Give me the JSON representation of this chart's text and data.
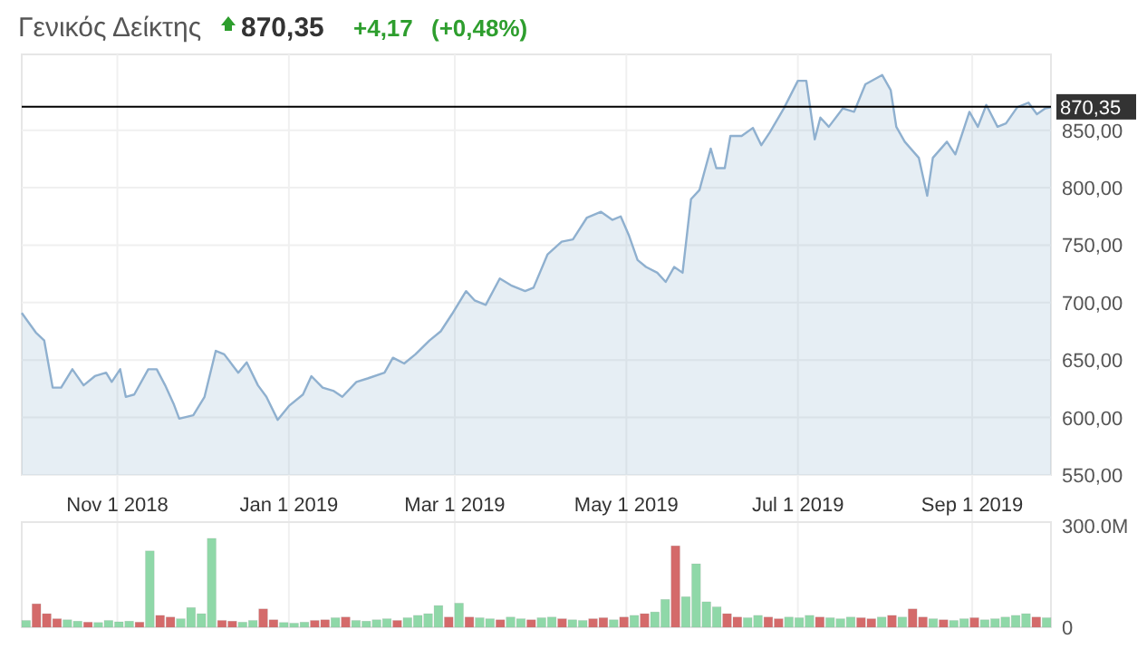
{
  "chart_data": [
    {
      "type": "area",
      "title": "Γενικός Δείκτης",
      "annotations": [
        "870,35",
        "+4,17",
        "(+0,48%)"
      ],
      "x": [
        "2018-09-28",
        "2018-10-03",
        "2018-10-06",
        "2018-10-09",
        "2018-10-12",
        "2018-10-16",
        "2018-10-20",
        "2018-10-24",
        "2018-10-28",
        "2018-10-30",
        "2018-11-02",
        "2018-11-04",
        "2018-11-07",
        "2018-11-12",
        "2018-11-15",
        "2018-11-18",
        "2018-11-21",
        "2018-11-23",
        "2018-11-28",
        "2018-12-02",
        "2018-12-06",
        "2018-12-09",
        "2018-12-14",
        "2018-12-17",
        "2018-12-21",
        "2018-12-24",
        "2018-12-28",
        "2019-01-01",
        "2019-01-06",
        "2019-01-09",
        "2019-01-13",
        "2019-01-17",
        "2019-01-20",
        "2019-01-25",
        "2019-01-29",
        "2019-02-04",
        "2019-02-07",
        "2019-02-11",
        "2019-02-15",
        "2019-02-20",
        "2019-02-24",
        "2019-02-28",
        "2019-03-05",
        "2019-03-08",
        "2019-03-12",
        "2019-03-17",
        "2019-03-21",
        "2019-03-26",
        "2019-03-29",
        "2019-04-03",
        "2019-04-08",
        "2019-04-12",
        "2019-04-17",
        "2019-04-22",
        "2019-04-26",
        "2019-04-29",
        "2019-05-02",
        "2019-05-05",
        "2019-05-08",
        "2019-05-12",
        "2019-05-15",
        "2019-05-18",
        "2019-05-21",
        "2019-05-24",
        "2019-05-27",
        "2019-05-31",
        "2019-06-02",
        "2019-06-05",
        "2019-06-07",
        "2019-06-11",
        "2019-06-15",
        "2019-06-18",
        "2019-06-21",
        "2019-06-26",
        "2019-07-01",
        "2019-07-04",
        "2019-07-07",
        "2019-07-09",
        "2019-07-12",
        "2019-07-17",
        "2019-07-21",
        "2019-07-25",
        "2019-07-31",
        "2019-08-03",
        "2019-08-05",
        "2019-08-08",
        "2019-08-13",
        "2019-08-16",
        "2019-08-18",
        "2019-08-23",
        "2019-08-26",
        "2019-08-31",
        "2019-09-03",
        "2019-09-06",
        "2019-09-10",
        "2019-09-13",
        "2019-09-17",
        "2019-09-21",
        "2019-09-24",
        "2019-09-27",
        "2019-09-29"
      ],
      "series": [
        {
          "color": "#8fb0cf",
          "values": [
            691,
            674,
            667,
            626,
            626,
            642,
            628,
            636,
            639,
            631,
            642,
            618,
            620,
            642,
            642,
            628,
            612,
            599,
            602,
            618,
            658,
            655,
            639,
            648,
            628,
            618,
            598,
            610,
            620,
            636,
            626,
            623,
            618,
            631,
            634,
            639,
            652,
            647,
            655,
            667,
            675,
            690,
            710,
            702,
            698,
            721,
            715,
            710,
            713,
            742,
            753,
            755,
            774,
            779,
            772,
            775,
            758,
            737,
            731,
            726,
            718,
            731,
            726,
            790,
            798,
            834,
            817,
            817,
            845,
            845,
            852,
            837,
            848,
            869,
            893,
            893,
            842,
            861,
            853,
            869,
            866,
            890,
            898,
            885,
            853,
            840,
            826,
            793,
            826,
            840,
            829,
            866,
            853,
            872,
            853,
            856,
            870,
            874,
            864,
            869,
            870
          ]
        }
      ],
      "xlim": [
        "2018-09-28",
        "2019-09-29"
      ],
      "xticks": [
        {
          "value": "2018-11-01",
          "label": "Nov 1 2018"
        },
        {
          "value": "2019-01-01",
          "label": "Jan 1 2019"
        },
        {
          "value": "2019-03-01",
          "label": "Mar 1 2019"
        },
        {
          "value": "2019-05-01",
          "label": "May 1 2019"
        },
        {
          "value": "2019-07-01",
          "label": "Jul 1 2019"
        },
        {
          "value": "2019-09-01",
          "label": "Sep 1 2019"
        }
      ],
      "ylim": [
        550,
        916
      ],
      "yticks": [
        {
          "value": 550,
          "label": "550,00"
        },
        {
          "value": 600,
          "label": "600,00"
        },
        {
          "value": 650,
          "label": "650,00"
        },
        {
          "value": 700,
          "label": "700,00"
        },
        {
          "value": 750,
          "label": "750,00"
        },
        {
          "value": 800,
          "label": "800,00"
        },
        {
          "value": 850,
          "label": "850,00"
        }
      ],
      "ref_lines": [
        {
          "axis": "y",
          "value": 870.35,
          "label": "870,35",
          "color": "#000000"
        }
      ],
      "grid": true
    },
    {
      "type": "bar",
      "categories": [
        null,
        null,
        null,
        null,
        null,
        null,
        null,
        null,
        null,
        null,
        null,
        null,
        null,
        null,
        null,
        null,
        null,
        null,
        null,
        null,
        null,
        null,
        null,
        null,
        null,
        null,
        null,
        null,
        null,
        null,
        null,
        null,
        null,
        null,
        null,
        null,
        null,
        null,
        null,
        null,
        null,
        null,
        null,
        null,
        null,
        null,
        null,
        null,
        null,
        null,
        null,
        null,
        null,
        null,
        null,
        null,
        null,
        null,
        null,
        null,
        null,
        null,
        null,
        null,
        null,
        null,
        null,
        null,
        null,
        null,
        null,
        null,
        null,
        null,
        null,
        null,
        null,
        null,
        null,
        null,
        null,
        null,
        null,
        null,
        null,
        null,
        null,
        null,
        null,
        null,
        null,
        null,
        null,
        null,
        null,
        null,
        null,
        null,
        null,
        null
      ],
      "values": [
        20,
        69,
        40,
        25,
        22,
        18,
        15,
        14,
        20,
        16,
        18,
        15,
        225,
        35,
        30,
        25,
        58,
        40,
        262,
        20,
        18,
        15,
        20,
        54,
        22,
        14,
        12,
        15,
        20,
        22,
        28,
        30,
        20,
        18,
        22,
        25,
        20,
        28,
        35,
        40,
        64,
        30,
        71,
        30,
        28,
        25,
        22,
        30,
        25,
        22,
        28,
        30,
        25,
        22,
        20,
        25,
        28,
        22,
        30,
        35,
        40,
        45,
        82,
        240,
        90,
        187,
        75,
        60,
        40,
        30,
        28,
        35,
        30,
        25,
        30,
        28,
        35,
        30,
        28,
        25,
        30,
        28,
        25,
        30,
        35,
        30,
        54,
        30,
        25,
        22,
        20,
        25,
        28,
        22,
        25,
        30,
        35,
        40,
        30,
        28
      ],
      "colors": [
        "#8fd8a8",
        "#d46a6a",
        "#d46a6a",
        "#d46a6a",
        "#8fd8a8",
        "#8fd8a8",
        "#d46a6a",
        "#8fd8a8",
        "#8fd8a8",
        "#8fd8a8",
        "#8fd8a8",
        "#d46a6a",
        "#8fd8a8",
        "#d46a6a",
        "#d46a6a",
        "#8fd8a8",
        "#8fd8a8",
        "#8fd8a8",
        "#8fd8a8",
        "#d46a6a",
        "#d46a6a",
        "#8fd8a8",
        "#8fd8a8",
        "#d46a6a",
        "#d46a6a",
        "#8fd8a8",
        "#8fd8a8",
        "#8fd8a8",
        "#d46a6a",
        "#d46a6a",
        "#8fd8a8",
        "#d46a6a",
        "#8fd8a8",
        "#8fd8a8",
        "#8fd8a8",
        "#8fd8a8",
        "#d46a6a",
        "#8fd8a8",
        "#8fd8a8",
        "#8fd8a8",
        "#8fd8a8",
        "#d46a6a",
        "#8fd8a8",
        "#d46a6a",
        "#8fd8a8",
        "#8fd8a8",
        "#d46a6a",
        "#8fd8a8",
        "#8fd8a8",
        "#d46a6a",
        "#8fd8a8",
        "#8fd8a8",
        "#d46a6a",
        "#8fd8a8",
        "#8fd8a8",
        "#d46a6a",
        "#d46a6a",
        "#8fd8a8",
        "#d46a6a",
        "#8fd8a8",
        "#d46a6a",
        "#8fd8a8",
        "#8fd8a8",
        "#d46a6a",
        "#8fd8a8",
        "#8fd8a8",
        "#8fd8a8",
        "#8fd8a8",
        "#d46a6a",
        "#d46a6a",
        "#8fd8a8",
        "#8fd8a8",
        "#d46a6a",
        "#d46a6a",
        "#8fd8a8",
        "#8fd8a8",
        "#8fd8a8",
        "#d46a6a",
        "#8fd8a8",
        "#8fd8a8",
        "#8fd8a8",
        "#d46a6a",
        "#d46a6a",
        "#8fd8a8",
        "#d46a6a",
        "#8fd8a8",
        "#d46a6a",
        "#d46a6a",
        "#8fd8a8",
        "#d46a6a",
        "#8fd8a8",
        "#8fd8a8",
        "#d46a6a",
        "#8fd8a8",
        "#8fd8a8",
        "#8fd8a8",
        "#8fd8a8",
        "#8fd8a8",
        "#d46a6a",
        "#8fd8a8"
      ],
      "ylim": [
        0,
        310
      ],
      "yticks": [
        {
          "value": 0,
          "label": "0"
        },
        {
          "value": 300,
          "label": "300.0M"
        }
      ]
    }
  ]
}
